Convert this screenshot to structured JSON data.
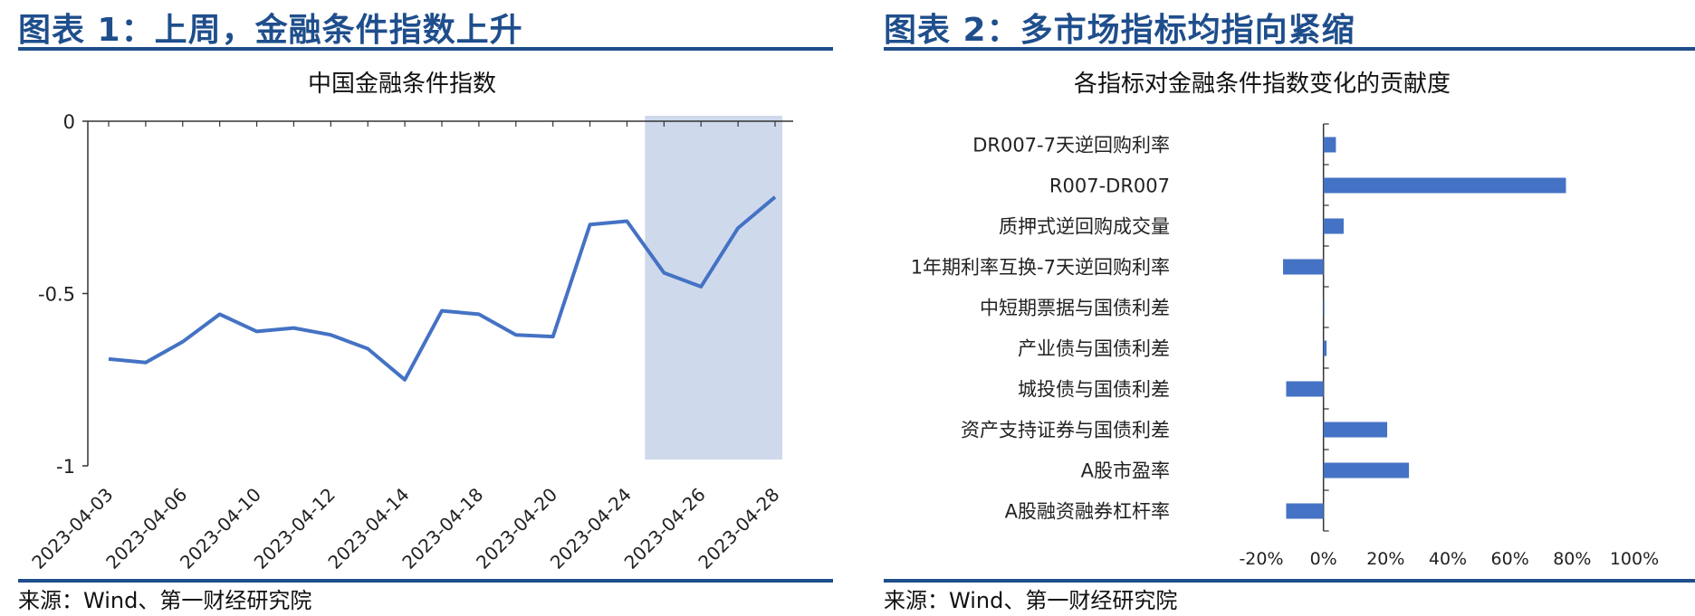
{
  "left": {
    "figure_title": "图表 1：上周，金融条件指数上升",
    "source": "来源：Wind、第一财经研究院",
    "chart_data": {
      "type": "line",
      "title": "中国金融条件指数",
      "xlabel": "",
      "ylabel": "",
      "ylim": [
        -1,
        0
      ],
      "yticks": [
        0,
        -0.5,
        -1
      ],
      "ytick_labels": [
        "0",
        "-0.5",
        "-1"
      ],
      "x": [
        "2023-04-03",
        "2023-04-04",
        "2023-04-06",
        "2023-04-07",
        "2023-04-10",
        "2023-04-11",
        "2023-04-12",
        "2023-04-13",
        "2023-04-14",
        "2023-04-17",
        "2023-04-18",
        "2023-04-19",
        "2023-04-20",
        "2023-04-21",
        "2023-04-24",
        "2023-04-25",
        "2023-04-26",
        "2023-04-27",
        "2023-04-28"
      ],
      "xtick_labels": [
        "2023-04-03",
        "2023-04-06",
        "2023-04-10",
        "2023-04-12",
        "2023-04-14",
        "2023-04-18",
        "2023-04-20",
        "2023-04-24",
        "2023-04-26",
        "2023-04-28"
      ],
      "xtick_index": [
        0,
        2,
        4,
        6,
        8,
        10,
        12,
        14,
        16,
        18
      ],
      "series": [
        {
          "values": [
            -0.69,
            -0.7,
            -0.64,
            -0.56,
            -0.61,
            -0.6,
            -0.62,
            -0.66,
            -0.75,
            -0.55,
            -0.56,
            -0.62,
            -0.625,
            -0.3,
            -0.29,
            -0.44,
            -0.48,
            -0.31,
            -0.22
          ],
          "color": "#4472c4"
        }
      ],
      "highlight": {
        "from_index": 15,
        "to_index": 18,
        "color": "#cfd9ec"
      },
      "grid": false
    }
  },
  "right": {
    "figure_title": "图表 2：多市场指标均指向紧缩",
    "source": "来源：Wind、第一财经研究院",
    "chart_data": {
      "type": "bar",
      "orientation": "horizontal",
      "title": "各指标对金融条件指数变化的贡献度",
      "xlabel": "",
      "ylabel": "",
      "categories": [
        "DR007-7天逆回购利率",
        "R007-DR007",
        "质押式逆回购成交量",
        "1年期利率互换-7天逆回购利率",
        "中短期票据与国债利差",
        "产业债与国债利差",
        "城投债与国债利差",
        "资产支持证券与国债利差",
        "A股市盈率",
        "A股融资融券杠杆率"
      ],
      "values": [
        4,
        78,
        6.5,
        -13,
        0.2,
        1,
        -12,
        20.5,
        27.5,
        -12
      ],
      "xlim": [
        -20,
        100
      ],
      "xticks": [
        -20,
        0,
        20,
        40,
        60,
        80,
        100
      ],
      "xtick_labels": [
        "-20%",
        "0%",
        "20%",
        "40%",
        "60%",
        "80%",
        "100%"
      ],
      "color": "#4472c4",
      "grid": false
    }
  }
}
